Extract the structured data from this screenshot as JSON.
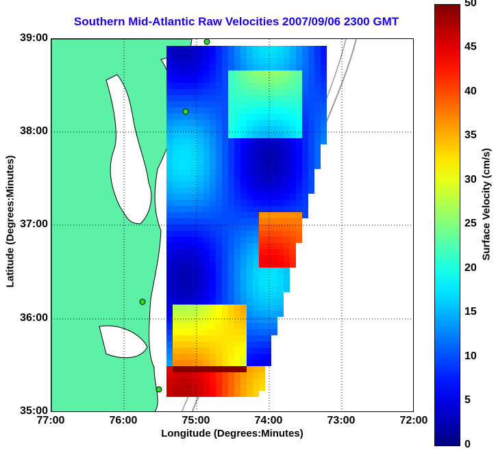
{
  "title": "Southern Mid-Atlantic Raw Velocities 2007/09/06 2300 GMT",
  "axes": {
    "xlabel": "Longitude (Degrees:Minutes)",
    "ylabel": "Latitude (Degrees:Minutes)",
    "x_ticks": [
      "77:00",
      "76:00",
      "75:00",
      "74:00",
      "73:00",
      "72:00"
    ],
    "y_ticks": [
      "39:00",
      "38:00",
      "37:00",
      "36:00",
      "35:00"
    ],
    "xlim": [
      -77,
      -72
    ],
    "ylim": [
      35,
      39
    ],
    "grid": true
  },
  "colorbar": {
    "label": "Surface Velocity (cm/s)",
    "min": 0,
    "max": 50,
    "ticks": [
      "50",
      "45",
      "40",
      "35",
      "30",
      "25",
      "20",
      "15",
      "10",
      "5",
      "0"
    ]
  },
  "colors": {
    "land": "#5df0a7",
    "coastline": "#000000",
    "title": "#1a00e0",
    "bathymetry": "#9a9a9a",
    "station_marker": "#22dd22"
  }
}
